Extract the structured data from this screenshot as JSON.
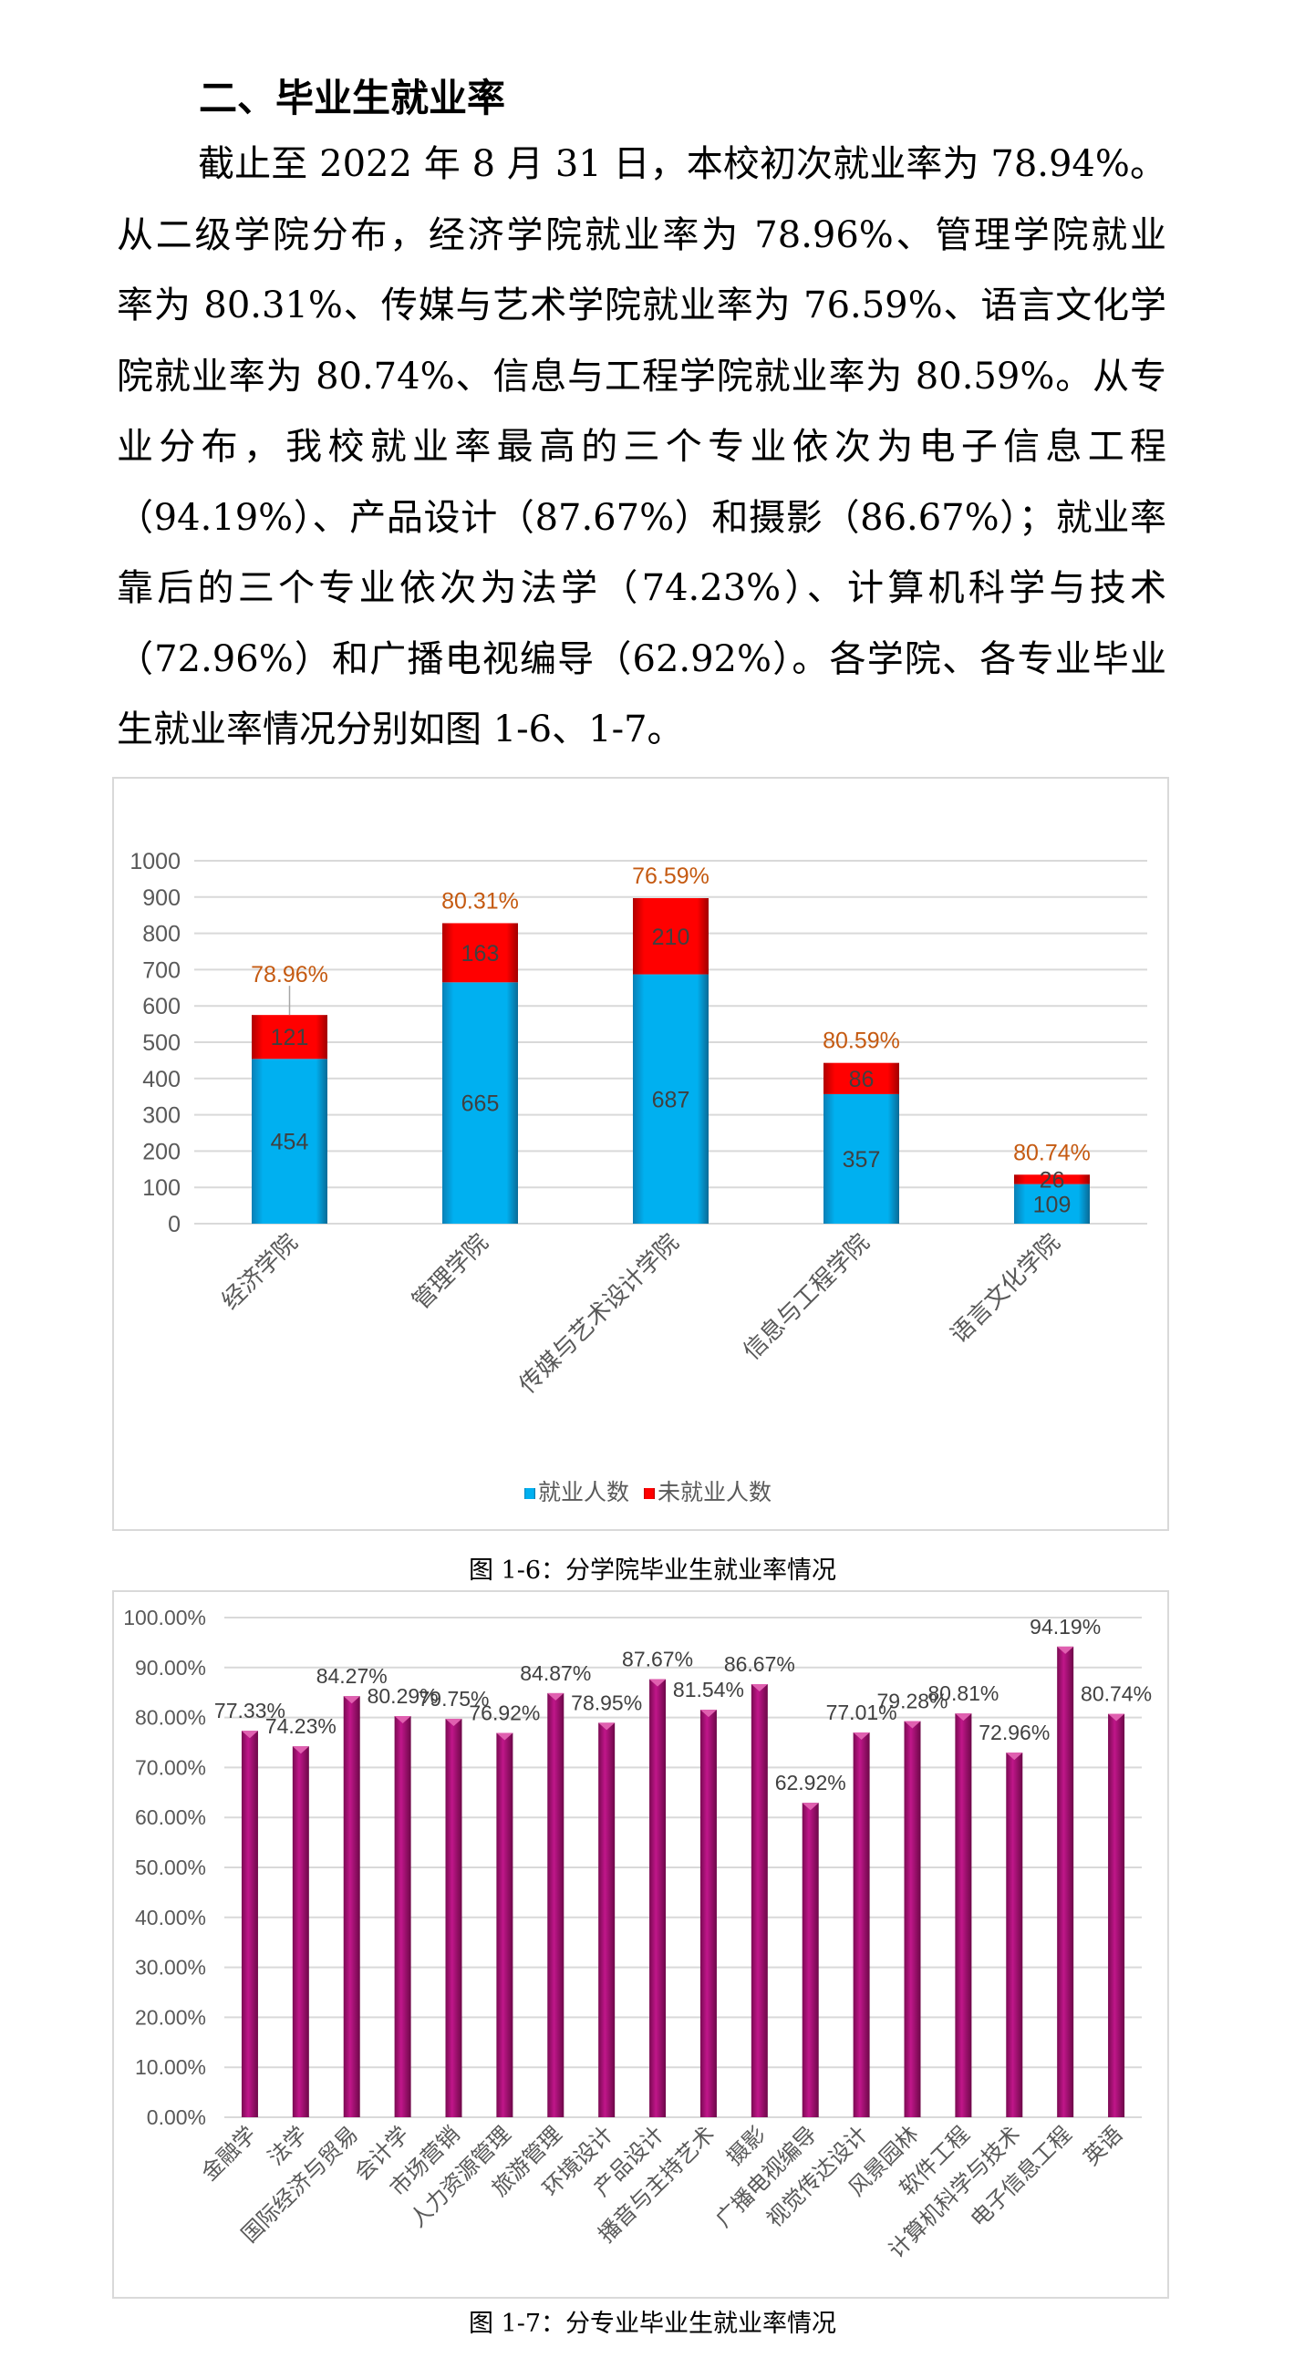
{
  "heading": "二、毕业生就业率",
  "paragraph_lines": [
    "截止至 2022 年 8 月 31 日，本校初次就业率为 78.94%。",
    "从二级学院分布，经济学院就业率为 78.96%、管理学院就业",
    "率为 80.31%、传媒与艺术学院就业率为 76.59%、语言文化学",
    "院就业率为 80.74%、信息与工程学院就业率为 80.59%。从专",
    "业分布，我校就业率最高的三个专业依次为电子信息工程",
    "（94.19%）、产品设计（87.67%）和摄影（86.67%）；就业率",
    "靠后的三个专业依次为法学（74.23%）、计算机科学与技术",
    "（72.96%）和广播电视编导（62.92%）。各学院、各专业毕业",
    "生就业率情况分别如图 1-6、1-7。"
  ],
  "captions": {
    "fig1": "图 1-6：分学院毕业生就业率情况",
    "fig2": "图 1-7：分专业毕业生就业率情况"
  },
  "chart_data": [
    {
      "type": "bar",
      "stacked": true,
      "categories": [
        "经济学院",
        "管理学院",
        "传媒与艺术设计学院",
        "信息与工程学院",
        "语言文化学院"
      ],
      "series": [
        {
          "name": "就业人数",
          "values": [
            454,
            665,
            687,
            357,
            109
          ],
          "color": "#00B0F0"
        },
        {
          "name": "未就业人数",
          "values": [
            121,
            163,
            210,
            86,
            26
          ],
          "color": "#FF0000"
        }
      ],
      "rate_labels": [
        "78.96%",
        "80.31%",
        "76.59%",
        "80.59%",
        "80.74%"
      ],
      "rate_label_color": "#C55A11",
      "yticks": [
        "0",
        "100",
        "200",
        "300",
        "400",
        "500",
        "600",
        "700",
        "800",
        "900",
        "1000"
      ],
      "ylim": [
        0,
        1000
      ],
      "grid": true,
      "legend": "bottom"
    },
    {
      "type": "bar",
      "categories": [
        "金融学",
        "法学",
        "国际经济与贸易",
        "会计学",
        "市场营销",
        "人力资源管理",
        "旅游管理",
        "环境设计",
        "产品设计",
        "播音与主持艺术",
        "摄影",
        "广播电视编导",
        "视觉传达设计",
        "风景园林",
        "软件工程",
        "计算机科学与技术",
        "电子信息工程",
        "英语"
      ],
      "values": [
        77.33,
        74.23,
        84.27,
        80.29,
        79.75,
        76.92,
        84.87,
        78.95,
        87.67,
        81.54,
        86.67,
        62.92,
        77.01,
        79.28,
        80.81,
        72.96,
        94.19,
        80.74
      ],
      "value_labels": [
        "77.33%",
        "74.23%",
        "84.27%",
        "80.29%",
        "79.75%",
        "76.92%",
        "84.87%",
        "78.95%",
        "87.67%",
        "81.54%",
        "86.67%",
        "62.92%",
        "77.01%",
        "79.28%",
        "80.81%",
        "72.96%",
        "94.19%",
        "80.74%"
      ],
      "color": "#B5117A",
      "yticks": [
        "0.00%",
        "10.00%",
        "20.00%",
        "30.00%",
        "40.00%",
        "50.00%",
        "60.00%",
        "70.00%",
        "80.00%",
        "90.00%",
        "100.00%"
      ],
      "ylim": [
        0,
        100
      ],
      "grid": true
    }
  ]
}
